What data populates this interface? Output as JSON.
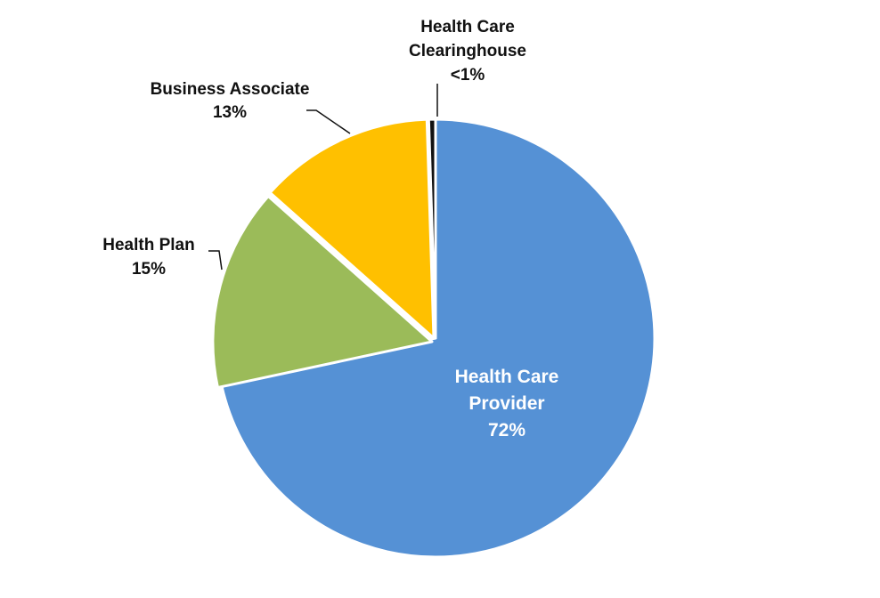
{
  "chart_data": {
    "type": "pie",
    "start_angle_deg": 0,
    "direction": "clockwise",
    "slices": [
      {
        "name": "Health Care Provider",
        "value": 72,
        "label": "72%",
        "color": "#5591d5"
      },
      {
        "name": "Health Plan",
        "value": 15,
        "label": "15%",
        "color": "#9bbb59"
      },
      {
        "name": "Business Associate",
        "value": 13,
        "label": "13%",
        "color": "#ffc000"
      },
      {
        "name": "Health Care Clearinghouse",
        "value": 0.5,
        "label": "<1%",
        "color": "#111111"
      }
    ],
    "labels": [
      {
        "lines": [
          "Health Care",
          "Provider",
          "72%"
        ]
      },
      {
        "lines": [
          "Health Plan",
          "15%"
        ]
      },
      {
        "lines": [
          "Business Associate",
          "13%"
        ]
      },
      {
        "lines": [
          "Health Care",
          "Clearinghouse",
          "<1%"
        ]
      }
    ]
  }
}
